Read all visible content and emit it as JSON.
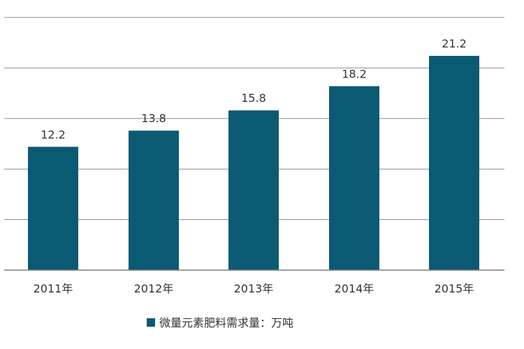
{
  "chart_data": {
    "type": "bar",
    "title": "",
    "xlabel": "",
    "ylabel": "",
    "categories": [
      "2011年",
      "2012年",
      "2013年",
      "2014年",
      "2015年"
    ],
    "series": [
      {
        "name": "微量元素肥料需求量：万吨",
        "values": [
          12.2,
          13.8,
          15.8,
          18.2,
          21.2
        ]
      }
    ],
    "data_labels": [
      "12.2",
      "13.8",
      "15.8",
      "18.2",
      "21.2"
    ],
    "ylim": [
      0,
      25
    ],
    "grid": true,
    "legend_position": "bottom-center",
    "colors": {
      "bar": "#0b5a73",
      "grid": "#8c8c8c",
      "text": "#333333",
      "axis": "#7f7f7f"
    }
  }
}
